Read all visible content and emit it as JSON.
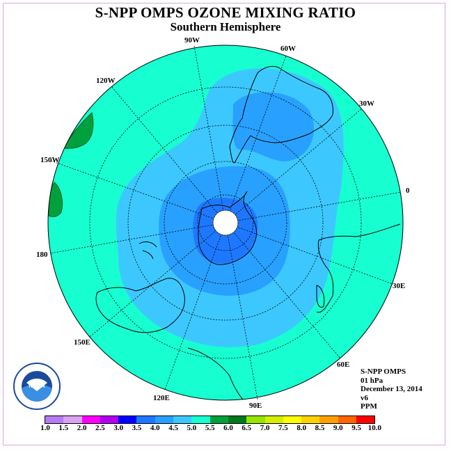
{
  "header": {
    "title": "S-NPP OMPS OZONE MIXING RATIO",
    "subtitle": "Southern Hemisphere"
  },
  "longitude_labels": [
    "90W",
    "60W",
    "120W",
    "30W",
    "150W",
    "0",
    "180",
    "30E",
    "150E",
    "60E",
    "120E",
    "90E"
  ],
  "info": {
    "instrument": "S-NPP OMPS",
    "level": "01 hPa",
    "date": "December 13, 2014",
    "version": "v6",
    "units": "PPM"
  },
  "logo": {
    "name": "noaa-logo",
    "text": "NOAA"
  },
  "colorbar": {
    "ticks": [
      "1.0",
      "1.5",
      "2.0",
      "2.5",
      "3.0",
      "3.5",
      "4.0",
      "4.5",
      "5.0",
      "5.5",
      "6.0",
      "6.5",
      "7.0",
      "7.5",
      "8.0",
      "8.5",
      "9.0",
      "9.5",
      "10.0"
    ],
    "colors": [
      "#b57cf2",
      "#d9a3f0",
      "#ff00ff",
      "#b400f0",
      "#0000ff",
      "#1e78ff",
      "#28a0ff",
      "#3cc8ff",
      "#17ffd0",
      "#00a03c",
      "#00781e",
      "#96e600",
      "#d2f000",
      "#ffff00",
      "#ffd200",
      "#ffa000",
      "#ff6400",
      "#ff0000",
      "#8c4b2d"
    ]
  },
  "map_colors": {
    "background": "#17ffd0",
    "level_4_5": "#3cc8ff",
    "level_4_0": "#28a0ff",
    "level_3_5": "#1e78ff",
    "level_5_5": "#00a03c",
    "coast": "#000000"
  }
}
